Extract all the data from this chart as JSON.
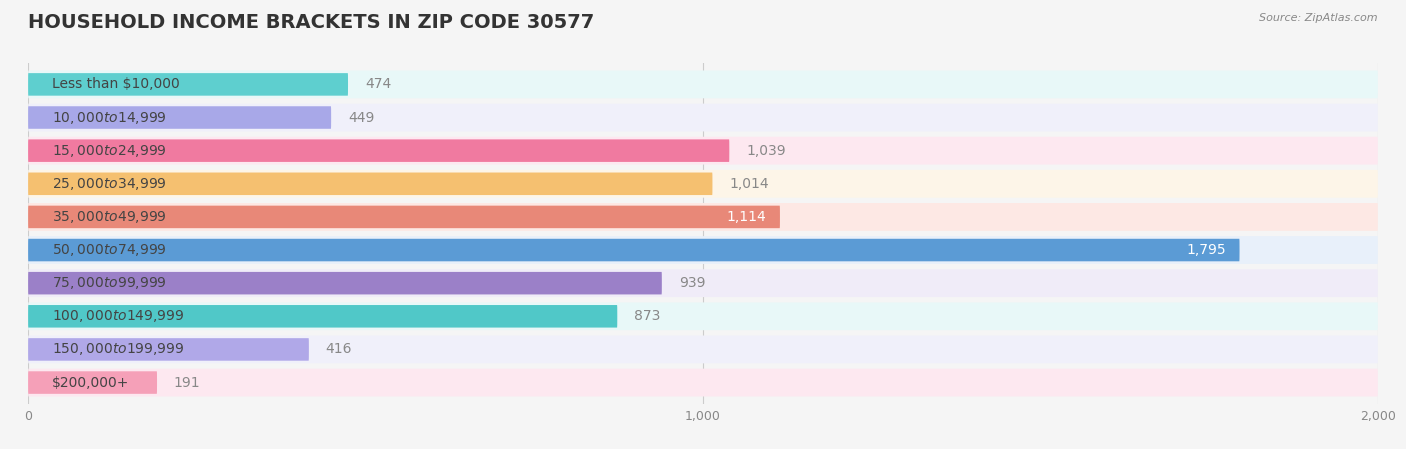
{
  "title": "HOUSEHOLD INCOME BRACKETS IN ZIP CODE 30577",
  "source": "Source: ZipAtlas.com",
  "categories": [
    "Less than $10,000",
    "$10,000 to $14,999",
    "$15,000 to $24,999",
    "$25,000 to $34,999",
    "$35,000 to $49,999",
    "$50,000 to $74,999",
    "$75,000 to $99,999",
    "$100,000 to $149,999",
    "$150,000 to $199,999",
    "$200,000+"
  ],
  "values": [
    474,
    449,
    1039,
    1014,
    1114,
    1795,
    939,
    873,
    416,
    191
  ],
  "bar_colors": [
    "#5ecfcf",
    "#a8a8e8",
    "#f07aa0",
    "#f5c070",
    "#e88878",
    "#5b9bd5",
    "#9b80c8",
    "#50c8c8",
    "#b0a8e8",
    "#f5a0b8"
  ],
  "bar_bg_colors": [
    "#e8f8f8",
    "#f0f0fa",
    "#fde8f0",
    "#fdf5e8",
    "#fde8e4",
    "#e8f0fa",
    "#f0ecf8",
    "#e8f8f8",
    "#f0f0fa",
    "#fde8f0"
  ],
  "xlim": [
    0,
    2000
  ],
  "xticks": [
    0,
    1000,
    2000
  ],
  "value_label_color_inside": "#ffffff",
  "value_label_color_outside": "#888888",
  "title_fontsize": 14,
  "label_fontsize": 10,
  "value_fontsize": 10,
  "background_color": "#f5f5f5"
}
